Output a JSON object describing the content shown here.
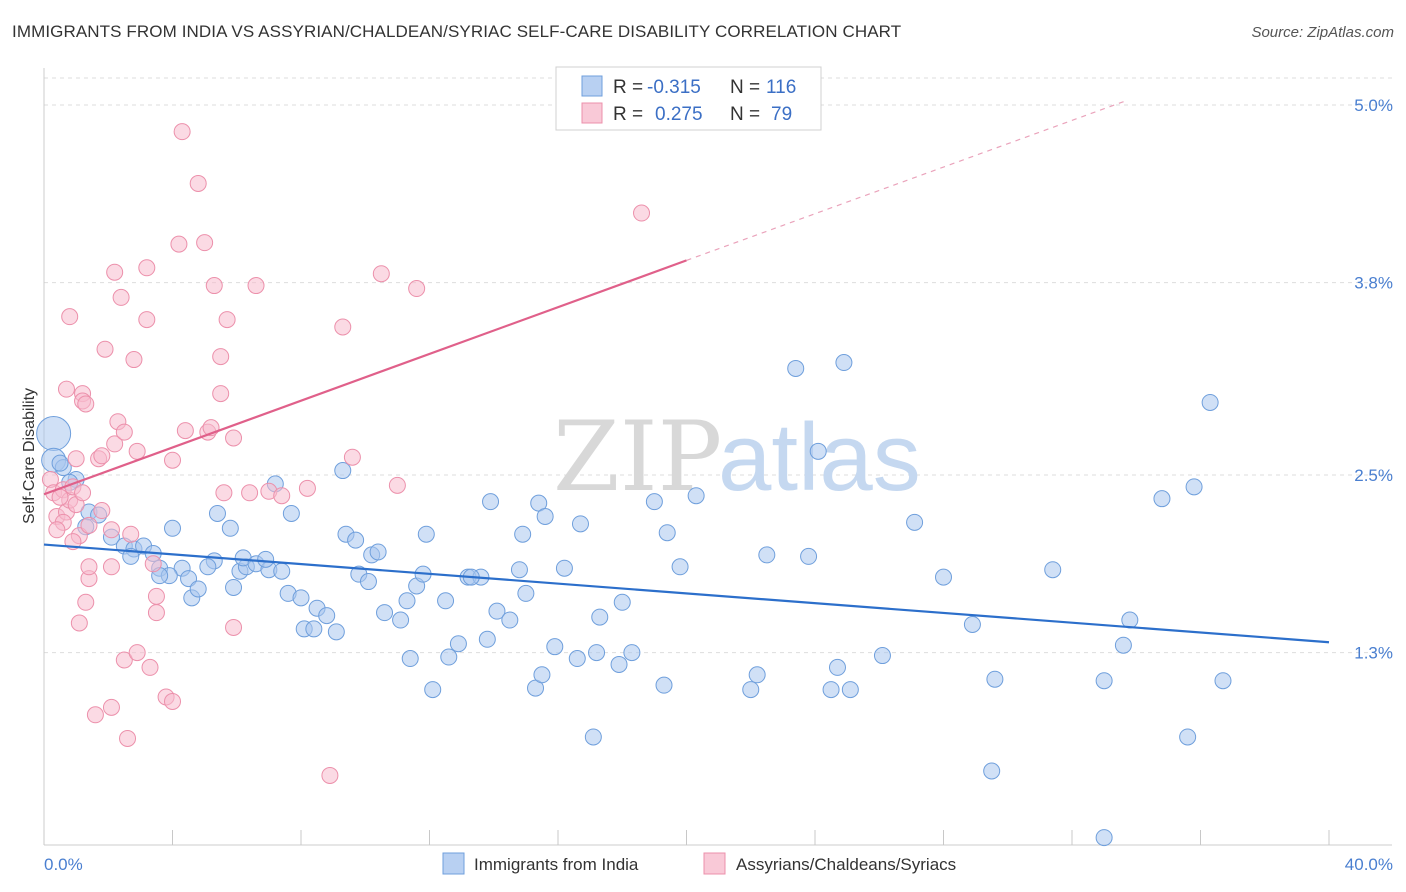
{
  "title": "IMMIGRANTS FROM INDIA VS ASSYRIAN/CHALDEAN/SYRIAC SELF-CARE DISABILITY CORRELATION CHART",
  "source": "Source: ZipAtlas.com",
  "watermark": {
    "zip": "ZIP",
    "atlas": "atlas"
  },
  "colors": {
    "blue_fill": "#a9c6ef",
    "blue_stroke": "#6f9fdc",
    "blue_line": "#2c6fcb",
    "pink_fill": "#f7bccd",
    "pink_stroke": "#ec90ab",
    "pink_line": "#e0608a",
    "grid": "#dddddd",
    "tick_text": "#4a7fd0"
  },
  "chart_data": {
    "type": "scatter",
    "xlabel": "",
    "ylabel": "Self-Care Disability",
    "xlim": [
      0,
      40
    ],
    "ylim": [
      0,
      5.25
    ],
    "x_tick_labels": [
      {
        "value": 0,
        "label": "0.0%"
      },
      {
        "value": 40,
        "label": "40.0%"
      }
    ],
    "x_minor_ticks": [
      0,
      4,
      8,
      12,
      16,
      20,
      24,
      28,
      32,
      36,
      40
    ],
    "y_ticks": [
      {
        "value": 1.3,
        "label": "1.3%"
      },
      {
        "value": 2.5,
        "label": "2.5%"
      },
      {
        "value": 3.8,
        "label": "3.8%"
      },
      {
        "value": 5.0,
        "label": "5.0%"
      }
    ],
    "grid": true,
    "stats": [
      {
        "r_label": "R =",
        "r": "-0.315",
        "n_label": "N =",
        "n": "116",
        "color": "blue"
      },
      {
        "r_label": "R =",
        "r": "0.275",
        "n_label": "N =",
        "n": "79",
        "color": "pink"
      }
    ],
    "series": [
      {
        "name": "Immigrants from India",
        "color": "blue",
        "trend": {
          "x0": 0,
          "y0": 2.03,
          "x1": 40,
          "y1": 1.37
        },
        "points": [
          [
            0.3,
            2.78,
            "L"
          ],
          [
            0.3,
            2.6,
            "M"
          ],
          [
            0.6,
            2.55
          ],
          [
            1.0,
            2.47
          ],
          [
            0.8,
            2.45
          ],
          [
            0.5,
            2.58
          ],
          [
            1.4,
            2.25
          ],
          [
            1.7,
            2.23
          ],
          [
            1.3,
            2.15
          ],
          [
            2.1,
            2.08
          ],
          [
            2.5,
            2.02
          ],
          [
            2.8,
            2.0
          ],
          [
            3.1,
            2.02
          ],
          [
            2.7,
            1.95
          ],
          [
            3.4,
            1.97
          ],
          [
            3.6,
            1.87
          ],
          [
            4.3,
            1.87
          ],
          [
            3.9,
            1.82
          ],
          [
            3.6,
            1.82
          ],
          [
            4.0,
            2.14
          ],
          [
            4.5,
            1.8
          ],
          [
            4.6,
            1.67
          ],
          [
            5.3,
            1.92
          ],
          [
            5.1,
            1.88
          ],
          [
            4.8,
            1.73
          ],
          [
            5.4,
            2.24
          ],
          [
            5.9,
            1.74
          ],
          [
            5.8,
            2.14
          ],
          [
            6.1,
            1.85
          ],
          [
            6.3,
            1.88
          ],
          [
            6.2,
            1.94
          ],
          [
            6.6,
            1.9
          ],
          [
            7.0,
            1.86
          ],
          [
            6.9,
            1.93
          ],
          [
            7.4,
            1.85
          ],
          [
            7.2,
            2.44
          ],
          [
            7.7,
            2.24
          ],
          [
            7.6,
            1.7
          ],
          [
            8.0,
            1.67
          ],
          [
            8.1,
            1.46
          ],
          [
            8.5,
            1.6
          ],
          [
            8.4,
            1.46
          ],
          [
            8.8,
            1.55
          ],
          [
            9.1,
            1.44
          ],
          [
            9.3,
            2.53
          ],
          [
            9.4,
            2.1
          ],
          [
            9.7,
            2.06
          ],
          [
            9.8,
            1.83
          ],
          [
            10.2,
            1.96
          ],
          [
            10.4,
            1.98
          ],
          [
            10.1,
            1.78
          ],
          [
            10.6,
            1.57
          ],
          [
            11.1,
            1.52
          ],
          [
            11.3,
            1.65
          ],
          [
            11.4,
            1.26
          ],
          [
            11.6,
            1.75
          ],
          [
            11.8,
            1.83
          ],
          [
            11.9,
            2.1
          ],
          [
            12.1,
            1.05
          ],
          [
            12.6,
            1.27
          ],
          [
            12.5,
            1.65
          ],
          [
            12.9,
            1.36
          ],
          [
            13.2,
            1.81
          ],
          [
            13.6,
            1.81
          ],
          [
            13.3,
            1.81
          ],
          [
            13.8,
            1.39
          ],
          [
            13.9,
            2.32
          ],
          [
            14.1,
            1.58
          ],
          [
            14.5,
            1.52
          ],
          [
            14.8,
            1.86
          ],
          [
            14.9,
            2.1
          ],
          [
            15.0,
            1.7
          ],
          [
            15.4,
            2.31
          ],
          [
            15.6,
            2.22
          ],
          [
            15.3,
            1.06
          ],
          [
            15.5,
            1.15
          ],
          [
            15.9,
            1.34
          ],
          [
            16.2,
            1.87
          ],
          [
            16.6,
            1.26
          ],
          [
            16.7,
            2.17
          ],
          [
            17.2,
            1.3
          ],
          [
            17.3,
            1.54
          ],
          [
            17.1,
            0.73
          ],
          [
            17.9,
            1.22
          ],
          [
            18.0,
            1.64
          ],
          [
            18.3,
            1.3
          ],
          [
            19.3,
            1.08
          ],
          [
            19.0,
            2.32
          ],
          [
            19.4,
            2.11
          ],
          [
            19.8,
            1.88
          ],
          [
            20.3,
            2.36
          ],
          [
            22.0,
            1.05
          ],
          [
            22.2,
            1.15
          ],
          [
            22.5,
            1.96
          ],
          [
            23.4,
            3.22
          ],
          [
            23.8,
            1.95
          ],
          [
            24.1,
            2.66
          ],
          [
            24.5,
            1.05
          ],
          [
            24.9,
            3.26
          ],
          [
            24.7,
            1.2
          ],
          [
            25.1,
            1.05
          ],
          [
            26.1,
            1.28
          ],
          [
            27.1,
            2.18
          ],
          [
            28.0,
            1.81
          ],
          [
            28.9,
            1.49
          ],
          [
            29.6,
            1.12
          ],
          [
            29.5,
            0.5
          ],
          [
            31.4,
            1.86
          ],
          [
            33.0,
            1.11
          ],
          [
            33.0,
            0.05
          ],
          [
            33.6,
            1.35
          ],
          [
            33.8,
            1.52
          ],
          [
            34.8,
            2.34
          ],
          [
            35.6,
            0.73
          ],
          [
            35.8,
            2.42
          ],
          [
            36.3,
            2.99
          ],
          [
            36.7,
            1.11
          ]
        ]
      },
      {
        "name": "Assyrians/Chaldeans/Syriacs",
        "color": "pink",
        "trend": {
          "x0": 0,
          "y0": 2.37,
          "x1": 20,
          "y1": 3.95
        },
        "trend_ext": {
          "x0": 20,
          "y0": 3.95,
          "x1": 33.7,
          "y1": 5.03
        },
        "points": [
          [
            0.2,
            2.47
          ],
          [
            0.3,
            2.38
          ],
          [
            0.4,
            2.22
          ],
          [
            0.6,
            2.4
          ],
          [
            0.7,
            2.25
          ],
          [
            0.8,
            2.33
          ],
          [
            0.6,
            2.18
          ],
          [
            0.9,
            2.42
          ],
          [
            1.0,
            2.61
          ],
          [
            1.0,
            2.3
          ],
          [
            1.1,
            2.09
          ],
          [
            1.2,
            2.38
          ],
          [
            1.4,
            2.16
          ],
          [
            0.7,
            3.08
          ],
          [
            1.2,
            3.05
          ],
          [
            0.8,
            3.57
          ],
          [
            1.2,
            3.0
          ],
          [
            1.3,
            2.98
          ],
          [
            1.1,
            1.5
          ],
          [
            1.4,
            1.8
          ],
          [
            1.4,
            1.88
          ],
          [
            1.3,
            1.64
          ],
          [
            1.7,
            2.61
          ],
          [
            1.8,
            2.63
          ],
          [
            1.8,
            2.26
          ],
          [
            1.6,
            0.88
          ],
          [
            1.9,
            3.35
          ],
          [
            2.1,
            2.13
          ],
          [
            2.1,
            1.88
          ],
          [
            2.1,
            0.93
          ],
          [
            2.2,
            3.87
          ],
          [
            2.2,
            2.71
          ],
          [
            2.3,
            2.86
          ],
          [
            2.4,
            3.7
          ],
          [
            2.5,
            2.79
          ],
          [
            2.5,
            1.25
          ],
          [
            2.6,
            0.72
          ],
          [
            2.7,
            2.1
          ],
          [
            2.9,
            2.66
          ],
          [
            2.8,
            3.28
          ],
          [
            2.9,
            1.3
          ],
          [
            3.2,
            3.55
          ],
          [
            3.2,
            3.9
          ],
          [
            3.3,
            1.2
          ],
          [
            3.4,
            1.9
          ],
          [
            3.5,
            1.57
          ],
          [
            3.5,
            1.68
          ],
          [
            3.8,
            1.0
          ],
          [
            4.0,
            0.97
          ],
          [
            4.0,
            2.6
          ],
          [
            4.2,
            4.06
          ],
          [
            4.3,
            4.82
          ],
          [
            4.4,
            2.8
          ],
          [
            4.8,
            4.47
          ],
          [
            5.0,
            4.07
          ],
          [
            5.1,
            2.79
          ],
          [
            5.2,
            2.82
          ],
          [
            5.3,
            3.78
          ],
          [
            5.5,
            3.05
          ],
          [
            5.5,
            3.3
          ],
          [
            5.6,
            2.38
          ],
          [
            5.7,
            3.55
          ],
          [
            5.9,
            1.47
          ],
          [
            5.9,
            2.75
          ],
          [
            6.4,
            2.38
          ],
          [
            6.6,
            3.78
          ],
          [
            7.0,
            2.39
          ],
          [
            7.4,
            2.36
          ],
          [
            8.2,
            2.41
          ],
          [
            8.9,
            0.47
          ],
          [
            9.3,
            3.5
          ],
          [
            9.6,
            2.62
          ],
          [
            10.5,
            3.86
          ],
          [
            11.0,
            2.43
          ],
          [
            11.6,
            3.76
          ],
          [
            18.6,
            4.27
          ],
          [
            0.4,
            2.13
          ],
          [
            0.5,
            2.35
          ],
          [
            0.9,
            2.05
          ]
        ]
      }
    ]
  }
}
